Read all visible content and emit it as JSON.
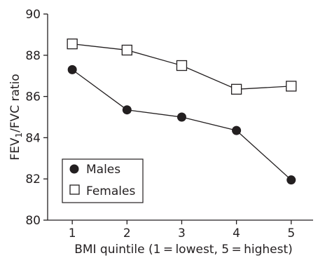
{
  "chart_data": {
    "type": "line",
    "xlabel": "BMI quintile (1 = lowest, 5 = highest)",
    "ylabel_main": "FEV",
    "ylabel_sub": "1",
    "ylabel_rest": "/FVC ratio",
    "x": [
      1,
      2,
      3,
      4,
      5
    ],
    "x_ticks": [
      "1",
      "2",
      "3",
      "4",
      "5"
    ],
    "y_ticks": [
      "80",
      "82",
      "84",
      "86",
      "88",
      "90"
    ],
    "ylim": [
      80,
      90
    ],
    "xlim": [
      0.55,
      5.4
    ],
    "grid": false,
    "legend_position": "bottom-left",
    "series": [
      {
        "name": "Males",
        "marker": "filled-circle",
        "color": "#231f20",
        "values": [
          87.3,
          85.35,
          85.0,
          84.35,
          81.95
        ]
      },
      {
        "name": "Females",
        "marker": "open-square",
        "color": "#231f20",
        "values": [
          88.55,
          88.25,
          87.5,
          86.35,
          86.5
        ]
      }
    ]
  }
}
